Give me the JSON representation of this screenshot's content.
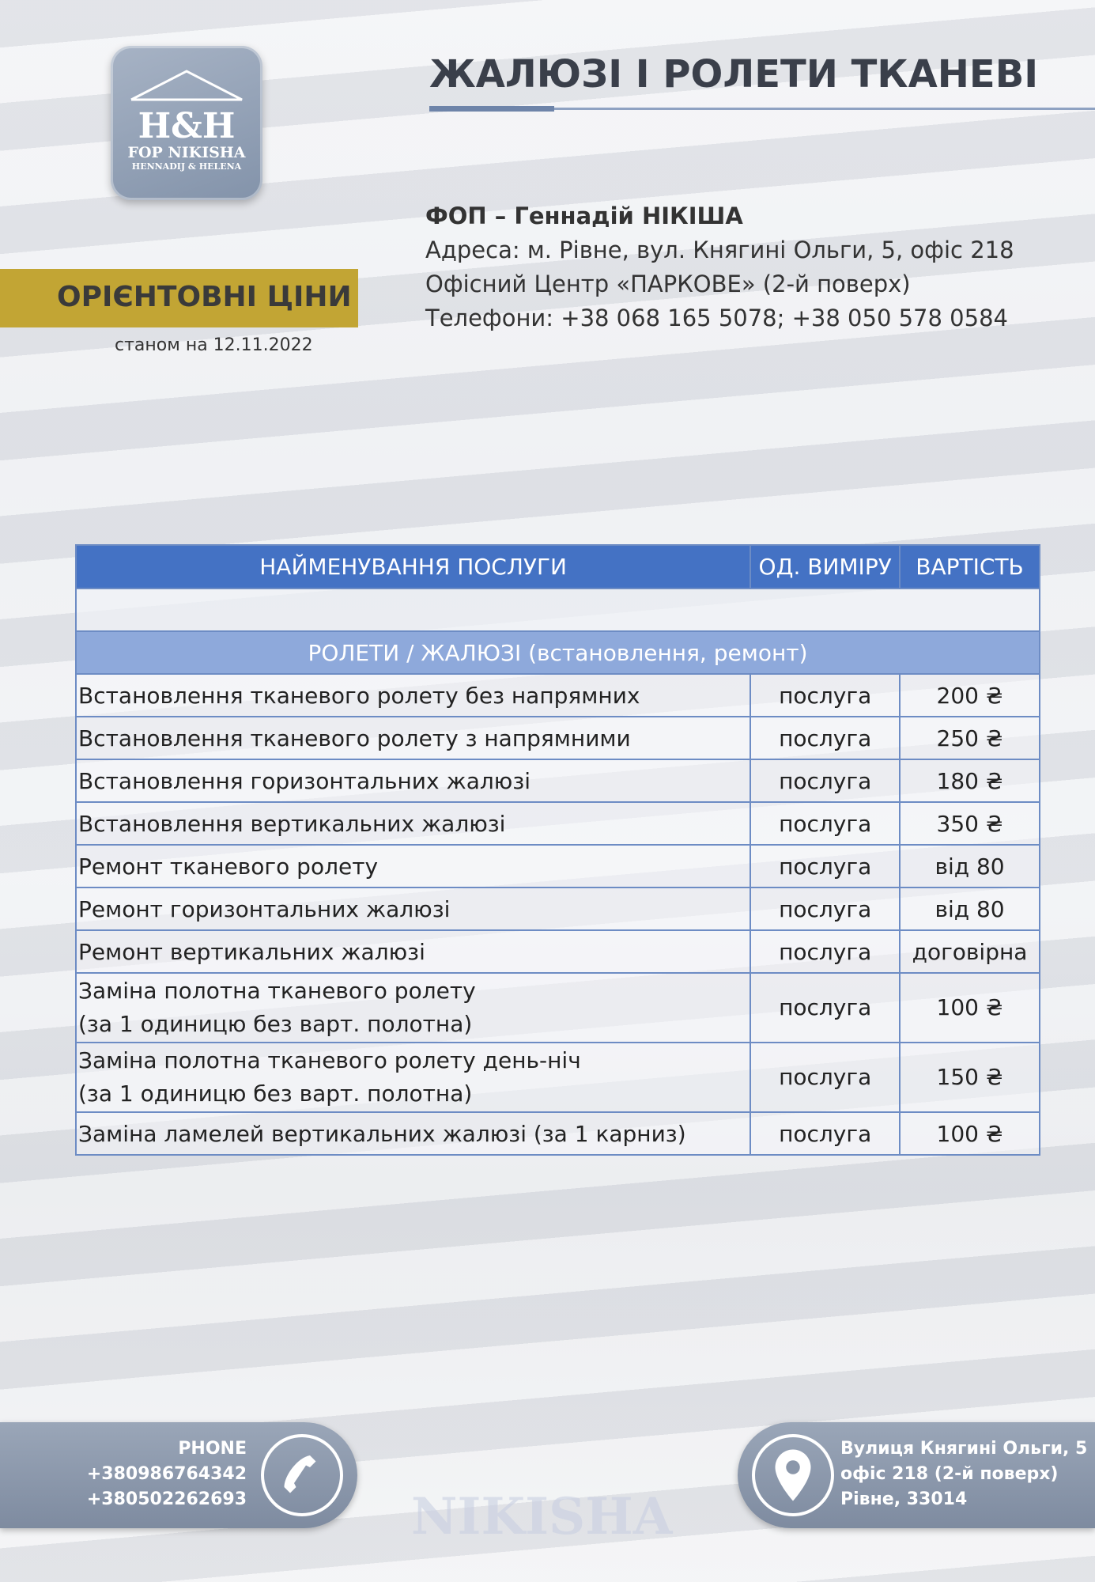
{
  "logo": {
    "mark": "H&H",
    "name": "FOP NIKISHA",
    "sub": "HENNADIJ & HELENA"
  },
  "title": "ЖАЛЮЗІ І РОЛЕТИ ТКАНЕВІ",
  "company": {
    "name": "ФОП – Геннадій НІКІША",
    "address": "Адреса: м. Рівне, вул. Княгині Ольги, 5, офіс 218",
    "center": "Офісний Центр «ПАРКОВЕ» (2-й поверх)",
    "phones": "Телефони: +38 068 165 5078; +38 050 578 0584"
  },
  "banner": {
    "label": "ОРІЄНТОВНІ ЦІНИ",
    "date": "станом на 12.11.2022"
  },
  "table": {
    "headers": [
      "НАЙМЕНУВАННЯ ПОСЛУГИ",
      "ОД. ВИМІРУ",
      "ВАРТІСТЬ"
    ],
    "section": "РОЛЕТИ / ЖАЛЮЗІ (встановлення, ремонт)",
    "rows": [
      {
        "name": "Встановлення тканевого ролету без напрямних",
        "unit": "послуга",
        "price": "200 ₴"
      },
      {
        "name": "Встановлення тканевого ролету з напрямними",
        "unit": "послуга",
        "price": "250 ₴"
      },
      {
        "name": "Встановлення горизонтальних жалюзі",
        "unit": "послуга",
        "price": "180 ₴"
      },
      {
        "name": "Встановлення вертикальних жалюзі",
        "unit": "послуга",
        "price": "350 ₴"
      },
      {
        "name": "Ремонт тканевого ролету",
        "unit": "послуга",
        "price": "від 80"
      },
      {
        "name": "Ремонт горизонтальних жалюзі",
        "unit": "послуга",
        "price": "від 80"
      },
      {
        "name": "Ремонт вертикальних жалюзі",
        "unit": "послуга",
        "price": "договірна"
      },
      {
        "name": "Заміна полотна тканевого ролету",
        "name2": "(за 1 одиницю без варт. полотна)",
        "unit": "послуга",
        "price": "100 ₴"
      },
      {
        "name": "Заміна полотна тканевого ролету день-ніч",
        "name2": "(за 1 одиницю без варт. полотна)",
        "unit": "послуга",
        "price": "150 ₴"
      },
      {
        "name": "Заміна ламелей вертикальних жалюзі (за 1 карниз)",
        "unit": "послуга",
        "price": "100 ₴"
      }
    ]
  },
  "footer": {
    "phone_label": "PHONE",
    "phone1": "+380986764342",
    "phone2": "+380502262693",
    "addr1": "Вулиця Княгині Ольги, 5",
    "addr2": "офіс 218 (2-й поверх)",
    "addr3": "Рівне, 33014",
    "watermark": "NIKISHA"
  }
}
